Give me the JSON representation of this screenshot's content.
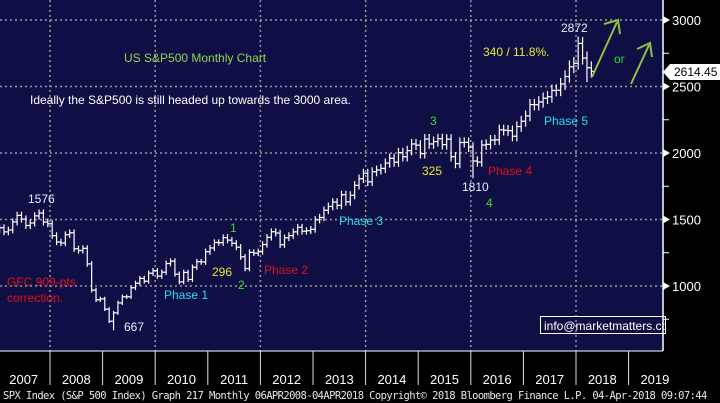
{
  "chart_data": {
    "type": "ohlc-bar",
    "title": "US S&P500 Monthly Chart",
    "subtitle": "Ideally the S&P500 is still headed up towards the 3000 area.",
    "start_month": "2007-01",
    "frequency": "monthly",
    "closes": [
      1438,
      1407,
      1421,
      1482,
      1531,
      1503,
      1455,
      1474,
      1527,
      1549,
      1481,
      1468,
      1379,
      1331,
      1323,
      1386,
      1400,
      1280,
      1267,
      1283,
      1166,
      969,
      896,
      903,
      826,
      735,
      798,
      873,
      919,
      919,
      987,
      1021,
      1057,
      1036,
      1096,
      1115,
      1074,
      1104,
      1169,
      1187,
      1089,
      1031,
      1102,
      1049,
      1141,
      1183,
      1181,
      1258,
      1286,
      1327,
      1326,
      1364,
      1345,
      1321,
      1292,
      1219,
      1131,
      1253,
      1247,
      1258,
      1312,
      1366,
      1408,
      1398,
      1310,
      1362,
      1379,
      1407,
      1441,
      1412,
      1416,
      1426,
      1498,
      1515,
      1569,
      1598,
      1631,
      1606,
      1686,
      1633,
      1682,
      1757,
      1806,
      1848,
      1783,
      1859,
      1872,
      1884,
      1924,
      1960,
      1931,
      2003,
      1972,
      2018,
      2068,
      2059,
      1995,
      2105,
      2068,
      2086,
      2107,
      2063,
      2104,
      1972,
      1920,
      2079,
      2080,
      2044,
      1940,
      1932,
      2060,
      2065,
      2097,
      2099,
      2174,
      2171,
      2168,
      2126,
      2199,
      2239,
      2279,
      2364,
      2363,
      2384,
      2412,
      2423,
      2470,
      2472,
      2519,
      2575,
      2648,
      2674,
      2824,
      2714,
      2641,
      2614
    ],
    "x_tick_labels": [
      "2007",
      "2008",
      "2009",
      "2010",
      "2011",
      "2012",
      "2013",
      "2014",
      "2015",
      "2016",
      "2017",
      "2018",
      "2019"
    ],
    "y_tick_labels": [
      "1000",
      "1500",
      "2000",
      "2500",
      "3000"
    ],
    "ylim": [
      600,
      3150
    ],
    "last_price": "2614.45",
    "grid": true
  },
  "annotations": {
    "high_2007": "1576",
    "gfc_line1": "GFC 909-pts",
    "gfc_line2": "correction.",
    "low_2009": "667",
    "phase1": "Phase 1",
    "pts_296": "296",
    "wave1": "1",
    "wave2": "2",
    "phase2": "Phase 2",
    "phase3": "Phase 3",
    "wave3": "3",
    "pts_325": "325",
    "low_1810": "1810",
    "wave4": "4",
    "phase4": "Phase 4",
    "phase5": "Phase 5",
    "pts_340": "340 / 11.8%.",
    "high_2872": "2872",
    "or": "or"
  },
  "email_box": "info@marketmatters.com.au",
  "footer": "SPX Index (S&P 500 Index) Graph 217  Monthly 06APR2008-04APR2018   Copyright© 2018 Bloomberg Finance L.P.   04-Apr-2018 09:07:44",
  "colors": {
    "background": "#0f0e45",
    "bars": "#ffffff",
    "green": "#33dd33",
    "red": "#e0101c",
    "cyan": "#22e0f0",
    "yellow": "#e8e830",
    "arrow": "#8fc040"
  }
}
